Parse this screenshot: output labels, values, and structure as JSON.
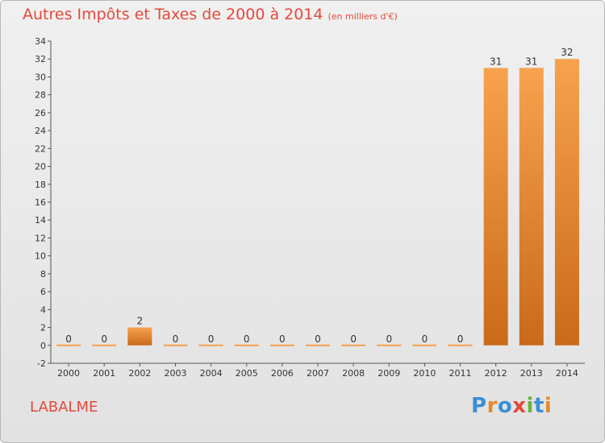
{
  "header": {
    "title": "Autres Impôts et Taxes de 2000 à 2014",
    "unit": "(en milliers d'€)"
  },
  "footer": {
    "commune": "LABALME",
    "logo_text": "Proxiti"
  },
  "colors": {
    "title": "#e3493c",
    "bar_light": "#f7a24e",
    "bar_dark": "#c96a1a",
    "logo_letters": [
      "#3a8fd6",
      "#e38b2c",
      "#3a8fd6",
      "#e3493c",
      "#6cb33e",
      "#3a8fd6",
      "#e38b2c"
    ]
  },
  "chart_data": {
    "type": "bar",
    "title": "Autres Impôts et Taxes de 2000 à 2014",
    "subtitle": "(en milliers d'€)",
    "categories": [
      "2000",
      "2001",
      "2002",
      "2003",
      "2004",
      "2005",
      "2006",
      "2007",
      "2008",
      "2009",
      "2010",
      "2011",
      "2012",
      "2013",
      "2014"
    ],
    "values": [
      0,
      0,
      2,
      0,
      0,
      0,
      0,
      0,
      0,
      0,
      0,
      0,
      31,
      31,
      32
    ],
    "data_labels": [
      "0",
      "0",
      "2",
      "0",
      "0",
      "0",
      "0",
      "0",
      "0",
      "0",
      "0",
      "0",
      "31",
      "31",
      "32"
    ],
    "ylim": [
      -2,
      34
    ],
    "yticks": [
      -2,
      0,
      2,
      4,
      6,
      8,
      10,
      12,
      14,
      16,
      18,
      20,
      22,
      24,
      26,
      28,
      30,
      32,
      34
    ],
    "grid": false
  }
}
